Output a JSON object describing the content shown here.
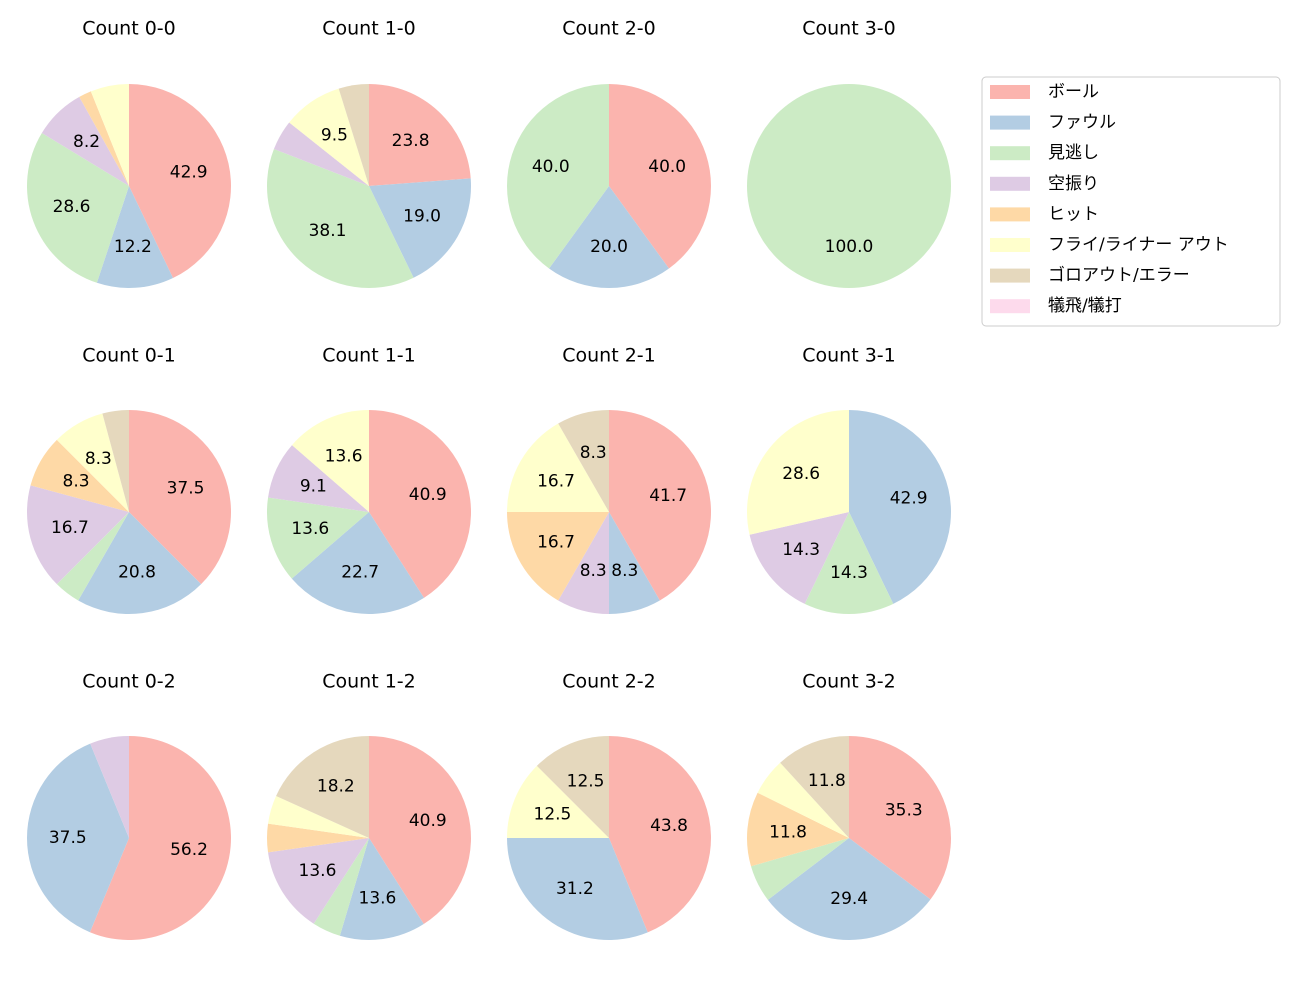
{
  "legend": {
    "entries": [
      "ボール",
      "ファウル",
      "見逃し",
      "空振り",
      "ヒット",
      "フライ/ライナー アウト",
      "ゴロアウト/エラー",
      "犠飛/犠打"
    ],
    "colors": [
      "#fbb4ae",
      "#b3cde3",
      "#ccebc5",
      "#decbe4",
      "#fed9a6",
      "#ffffcc",
      "#e5d8bd",
      "#fddaec"
    ],
    "position": "upper right"
  },
  "chart_data": [
    {
      "type": "pie",
      "title": "Count 0-0",
      "values": [
        42.9,
        12.2,
        28.6,
        8.2,
        2.0,
        6.1,
        0,
        0
      ],
      "value_labels": [
        "42.9",
        "12.2",
        "28.6",
        "8.2",
        null,
        null,
        null,
        null
      ]
    },
    {
      "type": "pie",
      "title": "Count 1-0",
      "values": [
        23.8,
        19.0,
        38.1,
        4.8,
        0,
        9.5,
        4.8,
        0
      ],
      "value_labels": [
        "23.8",
        "19.0",
        "38.1",
        null,
        null,
        "9.5",
        null,
        null
      ]
    },
    {
      "type": "pie",
      "title": "Count 2-0",
      "values": [
        40,
        20,
        40,
        0,
        0,
        0,
        0,
        0
      ],
      "value_labels": [
        "40.0",
        "20.0",
        "40.0",
        null,
        null,
        null,
        null,
        null
      ]
    },
    {
      "type": "pie",
      "title": "Count 3-0",
      "values": [
        0,
        0,
        100,
        0,
        0,
        0,
        0,
        0
      ],
      "value_labels": [
        null,
        null,
        "100.0",
        null,
        null,
        null,
        null,
        null
      ]
    },
    {
      "type": "pie",
      "title": "Count 0-1",
      "values": [
        37.5,
        20.8,
        4.2,
        16.7,
        8.3,
        8.3,
        4.2,
        0
      ],
      "value_labels": [
        "37.5",
        "20.8",
        null,
        "16.7",
        "8.3",
        "8.3",
        null,
        null
      ]
    },
    {
      "type": "pie",
      "title": "Count 1-1",
      "values": [
        40.9,
        22.7,
        13.6,
        9.1,
        0,
        13.6,
        0,
        0
      ],
      "value_labels": [
        "40.9",
        "22.7",
        "13.6",
        "9.1",
        null,
        "13.6",
        null,
        null
      ]
    },
    {
      "type": "pie",
      "title": "Count 2-1",
      "values": [
        41.7,
        8.3,
        0,
        8.3,
        16.7,
        16.7,
        8.3,
        0
      ],
      "value_labels": [
        "41.7",
        "8.3",
        null,
        "8.3",
        "16.7",
        "16.7",
        "8.3",
        null
      ]
    },
    {
      "type": "pie",
      "title": "Count 3-1",
      "values": [
        0,
        42.9,
        14.3,
        14.3,
        0,
        28.6,
        0,
        0
      ],
      "value_labels": [
        null,
        "42.9",
        "14.3",
        "14.3",
        null,
        "28.6",
        null,
        null
      ]
    },
    {
      "type": "pie",
      "title": "Count 0-2",
      "values": [
        56.2,
        37.5,
        0,
        6.2,
        0,
        0,
        0,
        0
      ],
      "value_labels": [
        "56.2",
        "37.5",
        null,
        null,
        null,
        null,
        null,
        null
      ]
    },
    {
      "type": "pie",
      "title": "Count 1-2",
      "values": [
        40.9,
        13.6,
        4.5,
        13.6,
        4.5,
        4.5,
        18.2,
        0
      ],
      "value_labels": [
        "40.9",
        "13.6",
        null,
        "13.6",
        null,
        null,
        "18.2",
        null
      ]
    },
    {
      "type": "pie",
      "title": "Count 2-2",
      "values": [
        43.8,
        31.2,
        0,
        0,
        0,
        12.5,
        12.5,
        0
      ],
      "value_labels": [
        "43.8",
        "31.2",
        null,
        null,
        null,
        "12.5",
        "12.5",
        null
      ]
    },
    {
      "type": "pie",
      "title": "Count 3-2",
      "values": [
        35.3,
        29.4,
        5.9,
        0,
        11.8,
        5.9,
        11.8,
        0
      ],
      "value_labels": [
        "35.3",
        "29.4",
        null,
        null,
        "11.8",
        null,
        "11.8",
        null
      ]
    }
  ]
}
